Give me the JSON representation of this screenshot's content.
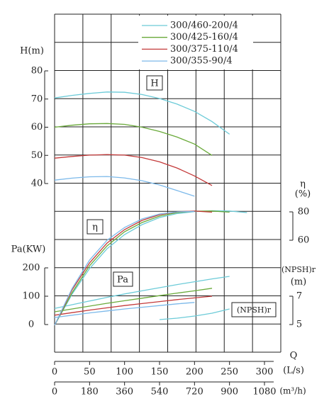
{
  "chart_data": {
    "type": "line",
    "x": [
      0,
      25,
      50,
      75,
      100,
      125,
      150,
      175,
      200,
      225,
      250,
      275
    ],
    "xlim": [
      0,
      300
    ],
    "xticks": [
      0,
      50,
      100,
      150,
      200,
      250,
      300
    ],
    "x_label": "Q",
    "x_unit": "(L/s)",
    "x2lim": [
      0,
      1080
    ],
    "x2ticks": [
      0,
      180,
      360,
      540,
      720,
      900,
      1080
    ],
    "x2_unit": "(m³/h)",
    "y_label": "H(m)",
    "ylim": [
      40,
      80
    ],
    "yticks": [
      40,
      50,
      60,
      70,
      80
    ],
    "eta_label": "η",
    "eta_unit": "(%)",
    "eta_lim": [
      60,
      80
    ],
    "eta_ticks": [
      60,
      80
    ],
    "pa_label": "Pa(KW)",
    "pa_lim": [
      0,
      200
    ],
    "pa_ticks": [
      0,
      100,
      200
    ],
    "npsh_label": "(NPSH)r",
    "npsh_unit": "(m)",
    "npsh_lim": [
      5,
      7
    ],
    "npsh_ticks": [
      5,
      7
    ],
    "annotations": [
      "H",
      "η",
      "Pa",
      "(NPSH)r"
    ],
    "series": [
      {
        "name": "300/460-200/4",
        "color": "#6ccbd8",
        "head": [
          70.4,
          71.3,
          72.0,
          72.5,
          72.4,
          71.6,
          70.2,
          68.2,
          65.6,
          62.0,
          57.5,
          null
        ],
        "efficiency": [
          0,
          22,
          40,
          54,
          64,
          71,
          76,
          78.8,
          80.2,
          80.8,
          80.6,
          79.5
        ],
        "power": [
          57,
          70,
          83,
          96,
          108,
          119,
          130,
          141,
          151,
          161,
          170,
          null
        ],
        "npsh": [
          null,
          null,
          null,
          null,
          null,
          null,
          5.35,
          5.45,
          5.6,
          5.8,
          6.1,
          null
        ]
      },
      {
        "name": "300/425-160/4",
        "color": "#6aaa3a",
        "head": [
          60.0,
          60.7,
          61.2,
          61.3,
          61.0,
          60.0,
          58.5,
          56.5,
          54.0,
          50.0,
          null,
          null
        ],
        "efficiency": [
          0,
          23,
          42,
          56,
          66,
          72.5,
          77,
          79.5,
          80.5,
          80.6,
          79.8,
          null
        ],
        "power": [
          45,
          55,
          65,
          75,
          84,
          93,
          102,
          111,
          119,
          128,
          null,
          null
        ]
      },
      {
        "name": "300/375-110/4",
        "color": "#c43a3a",
        "head": [
          49.0,
          49.6,
          50.1,
          50.3,
          50.1,
          49.2,
          47.7,
          45.5,
          42.7,
          39.3,
          null,
          null
        ],
        "efficiency": [
          0,
          25,
          44,
          58,
          67.5,
          74,
          78,
          80,
          80.6,
          79.8,
          null,
          null
        ],
        "power": [
          33,
          42,
          51,
          59,
          67,
          74,
          81,
          88,
          94,
          100,
          null,
          null
        ]
      },
      {
        "name": "300/355-90/4",
        "color": "#7cb9ea",
        "head": [
          41.2,
          41.9,
          42.4,
          42.5,
          42.0,
          41.0,
          39.5,
          37.5,
          35.5,
          null,
          null,
          null
        ],
        "efficiency": [
          0,
          26,
          46,
          60,
          69,
          75,
          78.5,
          80,
          80.3,
          null,
          null,
          null
        ],
        "power": [
          25,
          33,
          41,
          48,
          55,
          61,
          67,
          73,
          78,
          null,
          null,
          null
        ]
      }
    ]
  }
}
